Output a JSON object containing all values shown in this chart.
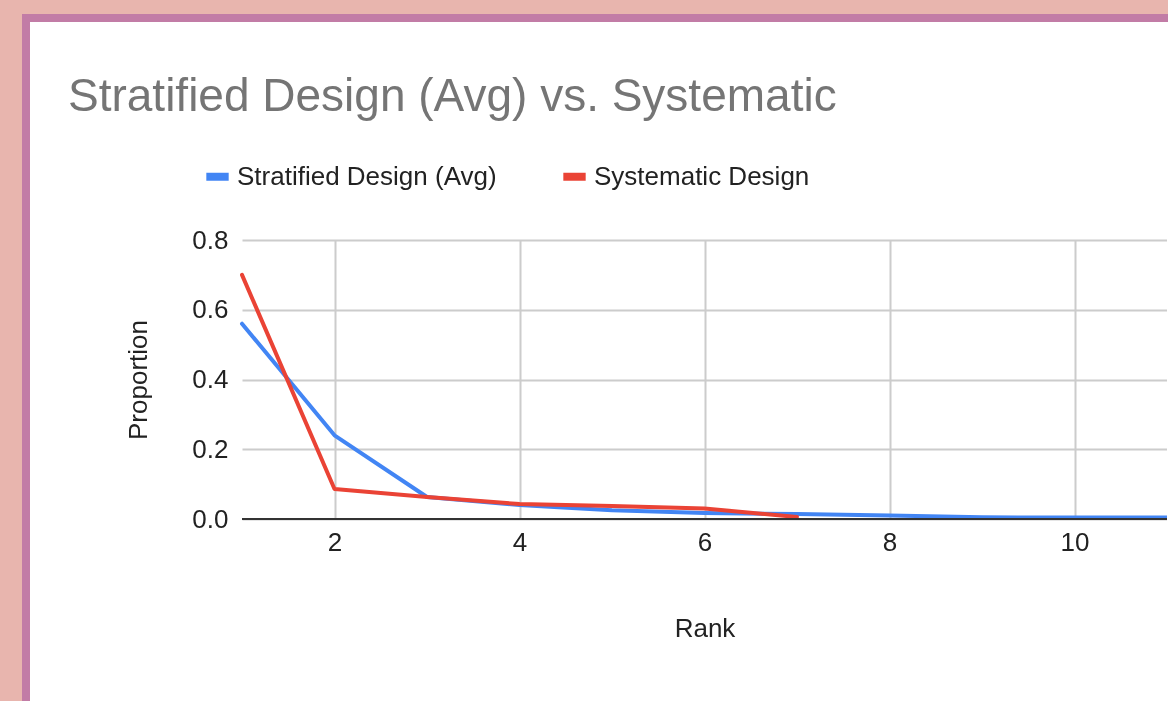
{
  "chart_data": {
    "type": "line",
    "title": "Stratified Design (Avg) vs. Systematic",
    "xlabel": "Rank",
    "ylabel": "Proportion",
    "x": [
      1,
      2,
      3,
      4,
      5,
      6,
      7,
      8,
      9,
      10,
      11
    ],
    "series": [
      {
        "name": "Stratified Design (Avg)",
        "color": "#4285f4",
        "values": [
          0.56,
          0.24,
          0.063,
          0.04,
          0.025,
          0.017,
          0.014,
          0.01,
          0.005,
          0.004,
          0.004
        ]
      },
      {
        "name": "Systematic Design",
        "color": "#ea4335",
        "values": [
          0.7,
          0.086,
          0.063,
          0.043,
          0.037,
          0.03,
          0.006,
          null,
          null,
          null,
          null
        ]
      }
    ],
    "xlim": [
      1,
      11
    ],
    "xticks": [
      2,
      4,
      6,
      8,
      10
    ],
    "ylim": [
      0,
      0.8
    ],
    "yticks": [
      {
        "value": 0,
        "label": "0.0"
      },
      {
        "value": 0.2,
        "label": "0.2"
      },
      {
        "value": 0.4,
        "label": "0.4"
      },
      {
        "value": 0.6,
        "label": "0.6"
      },
      {
        "value": 0.8,
        "label": "0.8"
      }
    ],
    "grid": true,
    "legend": "top",
    "marker": "none",
    "line_style": "solid"
  }
}
